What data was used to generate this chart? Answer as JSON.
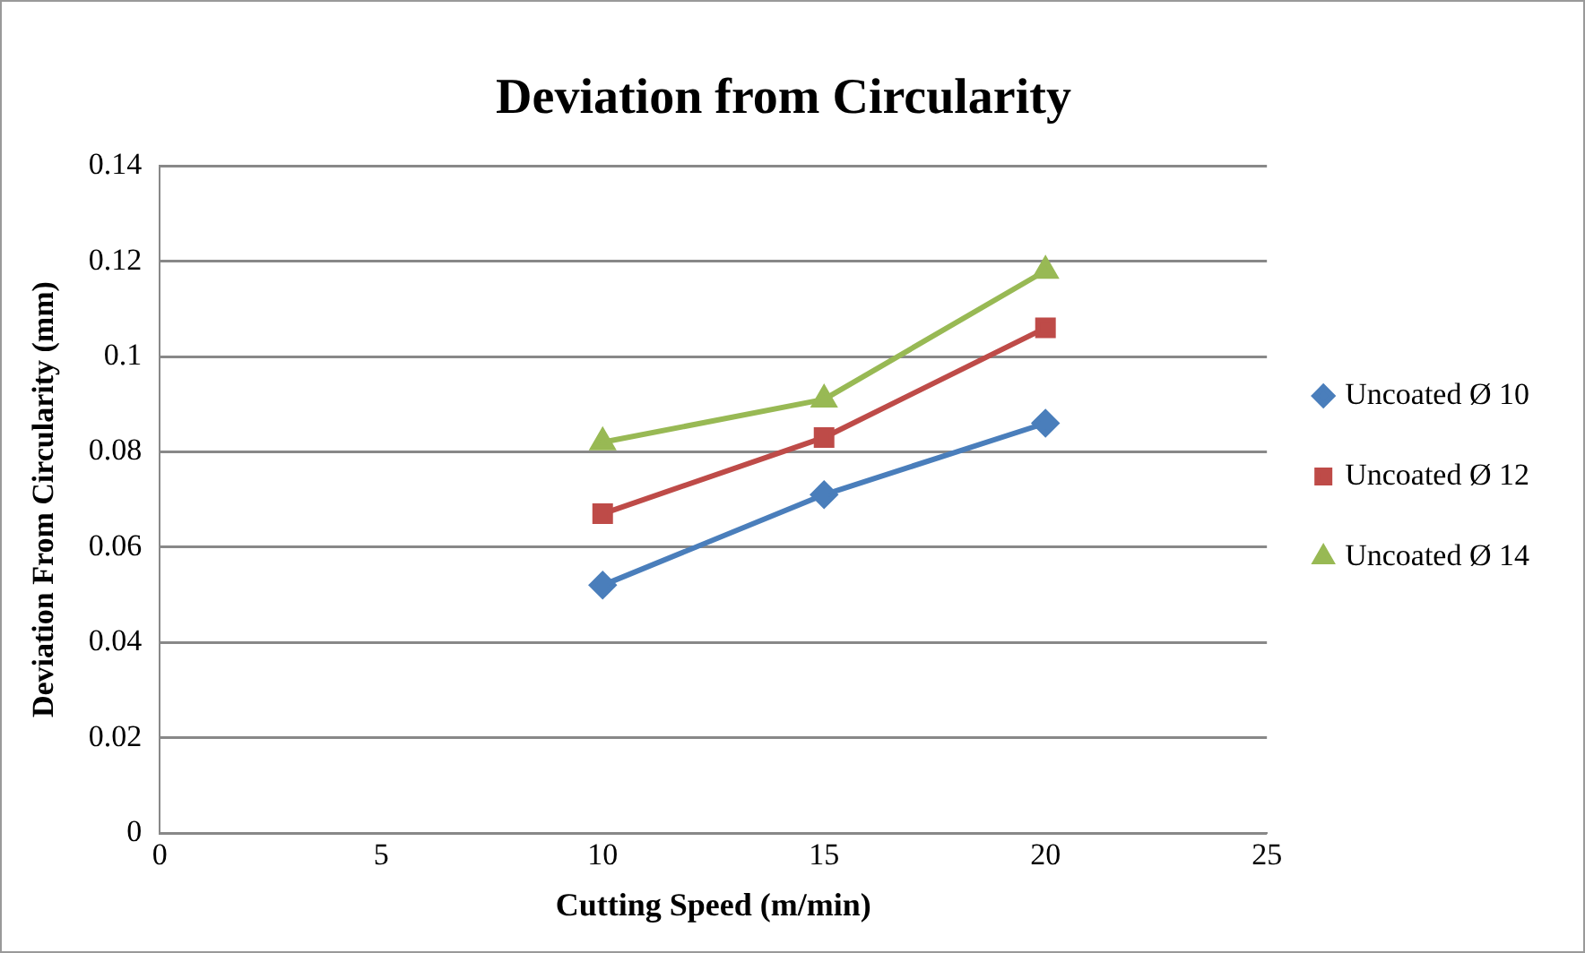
{
  "chart_data": {
    "type": "line",
    "title": "Deviation from Circularity",
    "xlabel": "Cutting Speed (m/min)",
    "ylabel": "Deviation From Circularity (mm)",
    "x": [
      10,
      15,
      20
    ],
    "series": [
      {
        "name": "Uncoated Ø 10",
        "color": "#4a7ebb",
        "marker": "diamond",
        "values": [
          0.052,
          0.071,
          0.086
        ]
      },
      {
        "name": "Uncoated Ø 12",
        "color": "#be4b48",
        "marker": "square",
        "values": [
          0.067,
          0.083,
          0.106
        ]
      },
      {
        "name": "Uncoated Ø 14",
        "color": "#98b954",
        "marker": "triangle",
        "values": [
          0.082,
          0.091,
          0.118
        ]
      }
    ],
    "xlim": [
      0,
      25
    ],
    "xticks": [
      0,
      5,
      10,
      15,
      20,
      25
    ],
    "ylim": [
      0,
      0.14
    ],
    "yticks": [
      0,
      0.02,
      0.04,
      0.06,
      0.08,
      0.1,
      0.12,
      0.14
    ],
    "grid": "y",
    "legend": "right",
    "line_style": "solid"
  }
}
